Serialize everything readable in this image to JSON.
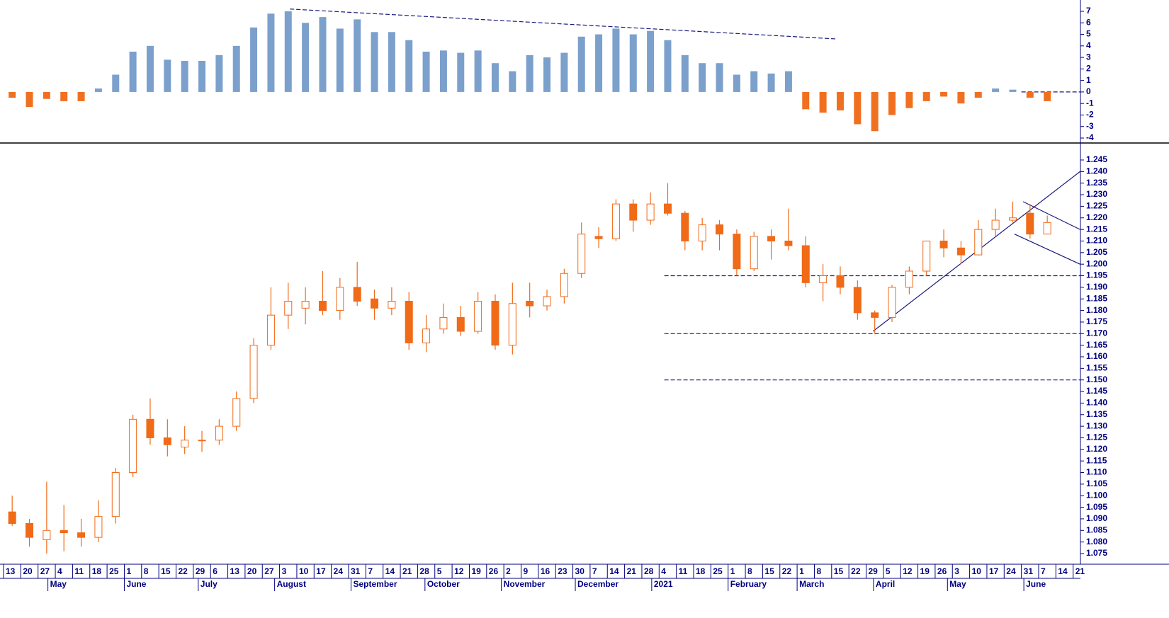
{
  "chart_data": [
    {
      "type": "histogram-indicator",
      "values": [
        -0.5,
        -1.3,
        -0.6,
        -0.8,
        -0.8,
        0.3,
        1.5,
        3.5,
        4,
        2.8,
        2.7,
        2.7,
        3.2,
        4,
        5.6,
        6.8,
        7,
        6,
        6.5,
        5.5,
        6.3,
        5.2,
        5.2,
        4.5,
        3.5,
        3.6,
        3.4,
        3.6,
        2.5,
        1.8,
        3.2,
        3,
        3.4,
        4.8,
        5,
        5.5,
        5,
        5.3,
        4.5,
        3.2,
        2.5,
        2.5,
        1.5,
        1.8,
        1.6,
        1.8,
        -1.5,
        -1.8,
        -1.6,
        -2.8,
        -3.4,
        -2,
        -1.4,
        -0.8,
        -0.4,
        -1,
        -0.5,
        0.3,
        0.2,
        -0.5,
        -0.8
      ],
      "colors": {
        "positive": "#7ba0cc",
        "negative": "#f07020"
      },
      "ylim": [
        -4,
        7
      ],
      "yticks": [
        -4,
        -3,
        -2,
        -1,
        0,
        1,
        2,
        3,
        4,
        5,
        6,
        7
      ],
      "lines": [
        {
          "x": [
            16.6,
            48.3
          ],
          "y": [
            7.2,
            4.6
          ],
          "dash": true
        },
        {
          "x": [
            59.0,
            62.4
          ],
          "y": [
            0,
            0
          ],
          "dash": true
        }
      ]
    },
    {
      "type": "candlestick",
      "color": "#f06a18",
      "open": [
        1.093,
        1.088,
        1.081,
        1.085,
        1.084,
        1.082,
        1.091,
        1.11,
        1.133,
        1.125,
        1.121,
        1.124,
        1.124,
        1.13,
        1.142,
        1.165,
        1.178,
        1.181,
        1.184,
        1.18,
        1.19,
        1.185,
        1.181,
        1.184,
        1.166,
        1.172,
        1.177,
        1.171,
        1.184,
        1.165,
        1.184,
        1.182,
        1.186,
        1.196,
        1.212,
        1.211,
        1.226,
        1.219,
        1.226,
        1.222,
        1.21,
        1.217,
        1.213,
        1.198,
        1.212,
        1.21,
        1.208,
        1.192,
        1.195,
        1.19,
        1.179,
        1.177,
        1.19,
        1.197,
        1.21,
        1.207,
        1.204,
        1.215,
        1.219,
        1.222,
        1.213
      ],
      "high": [
        1.1,
        1.09,
        1.106,
        1.096,
        1.09,
        1.098,
        1.112,
        1.135,
        1.142,
        1.133,
        1.13,
        1.128,
        1.133,
        1.145,
        1.168,
        1.19,
        1.192,
        1.19,
        1.197,
        1.194,
        1.201,
        1.189,
        1.19,
        1.188,
        1.178,
        1.183,
        1.182,
        1.188,
        1.187,
        1.192,
        1.192,
        1.189,
        1.198,
        1.218,
        1.216,
        1.228,
        1.228,
        1.231,
        1.235,
        1.223,
        1.22,
        1.219,
        1.215,
        1.214,
        1.215,
        1.224,
        1.212,
        1.2,
        1.199,
        1.193,
        1.18,
        1.191,
        1.199,
        1.21,
        1.215,
        1.21,
        1.219,
        1.224,
        1.227,
        1.226,
        1.221
      ],
      "low": [
        1.087,
        1.078,
        1.075,
        1.076,
        1.078,
        1.08,
        1.088,
        1.108,
        1.122,
        1.117,
        1.118,
        1.119,
        1.122,
        1.128,
        1.14,
        1.163,
        1.172,
        1.174,
        1.178,
        1.176,
        1.182,
        1.176,
        1.178,
        1.163,
        1.162,
        1.17,
        1.169,
        1.17,
        1.163,
        1.161,
        1.177,
        1.18,
        1.183,
        1.194,
        1.207,
        1.21,
        1.214,
        1.217,
        1.221,
        1.206,
        1.206,
        1.206,
        1.195,
        1.197,
        1.202,
        1.206,
        1.19,
        1.184,
        1.187,
        1.176,
        1.17,
        1.175,
        1.187,
        1.195,
        1.203,
        1.2,
        1.205,
        1.212,
        1.218,
        1.211,
        1.213
      ],
      "close": [
        1.088,
        1.082,
        1.085,
        1.084,
        1.082,
        1.091,
        1.11,
        1.133,
        1.125,
        1.122,
        1.124,
        1.124,
        1.13,
        1.142,
        1.165,
        1.178,
        1.184,
        1.184,
        1.18,
        1.19,
        1.184,
        1.181,
        1.184,
        1.166,
        1.172,
        1.177,
        1.171,
        1.184,
        1.165,
        1.183,
        1.182,
        1.186,
        1.196,
        1.213,
        1.211,
        1.226,
        1.219,
        1.226,
        1.222,
        1.21,
        1.217,
        1.213,
        1.198,
        1.212,
        1.21,
        1.208,
        1.192,
        1.195,
        1.19,
        1.179,
        1.177,
        1.19,
        1.197,
        1.21,
        1.207,
        1.204,
        1.215,
        1.219,
        1.22,
        1.213,
        1.218
      ],
      "ylim": [
        1.075,
        1.245
      ],
      "yticks": [
        1.075,
        {
          "value": 1.08,
          "label": "1.080"
        },
        1.085,
        {
          "value": 1.09,
          "label": "1.090"
        },
        1.095,
        {
          "value": 1.1,
          "label": "1.100"
        },
        1.105,
        {
          "value": 1.11,
          "label": "1.110"
        },
        1.115,
        {
          "value": 1.12,
          "label": "1.120"
        },
        1.125,
        {
          "value": 1.13,
          "label": "1.130"
        },
        1.135,
        {
          "value": 1.14,
          "label": "1.140"
        },
        1.145,
        {
          "value": 1.15,
          "label": "1.150"
        },
        1.155,
        {
          "value": 1.16,
          "label": "1.160"
        },
        1.165,
        {
          "value": 1.17,
          "label": "1.170"
        },
        1.175,
        {
          "value": 1.18,
          "label": "1.180"
        },
        1.185,
        {
          "value": 1.19,
          "label": "1.190"
        },
        1.195,
        {
          "value": 1.2,
          "label": "1.200"
        },
        1.205,
        {
          "value": 1.21,
          "label": "1.210"
        },
        1.215,
        {
          "value": 1.22,
          "label": "1.220"
        },
        1.225,
        {
          "value": 1.23,
          "label": "1.230"
        },
        1.235,
        {
          "value": 1.24,
          "label": "1.240"
        },
        1.245
      ],
      "lines": [
        {
          "x": [
            38.3,
            62.4
          ],
          "y": [
            1.195,
            1.195
          ],
          "dash": true
        },
        {
          "x": [
            38.3,
            62.4
          ],
          "y": [
            1.17,
            1.17
          ],
          "dash": true
        },
        {
          "x": [
            38.3,
            62.4
          ],
          "y": [
            1.15,
            1.15
          ],
          "dash": true
        },
        {
          "x": [
            50.4,
            62.4
          ],
          "y": [
            1.171,
            1.24
          ],
          "dash": false
        },
        {
          "x": [
            59.1,
            62.4
          ],
          "y": [
            1.227,
            1.215
          ],
          "dash": false
        },
        {
          "x": [
            58.6,
            62.4
          ],
          "y": [
            1.213,
            1.2
          ],
          "dash": false
        }
      ],
      "xticks": [
        "13",
        "20",
        "27",
        "4",
        "11",
        "18",
        "25",
        "1",
        "8",
        "15",
        "22",
        "29",
        "6",
        "13",
        "20",
        "27",
        "3",
        "10",
        "17",
        "24",
        "31",
        "7",
        "14",
        "21",
        "28",
        "5",
        "12",
        "19",
        "26",
        "2",
        "9",
        "16",
        "23",
        "30",
        "7",
        "14",
        "21",
        "28",
        "4",
        "11",
        "18",
        "25",
        "1",
        "8",
        "15",
        "22",
        "1",
        "8",
        "15",
        "22",
        "29",
        "5",
        "12",
        "19",
        "26",
        "3",
        "10",
        "17",
        "24",
        "31",
        "7",
        "14",
        "21"
      ],
      "months": [
        "May",
        "June",
        "July",
        "August",
        "September",
        "October",
        "November",
        "December",
        "2021",
        "February",
        "March",
        "April",
        "May",
        "June"
      ]
    }
  ]
}
